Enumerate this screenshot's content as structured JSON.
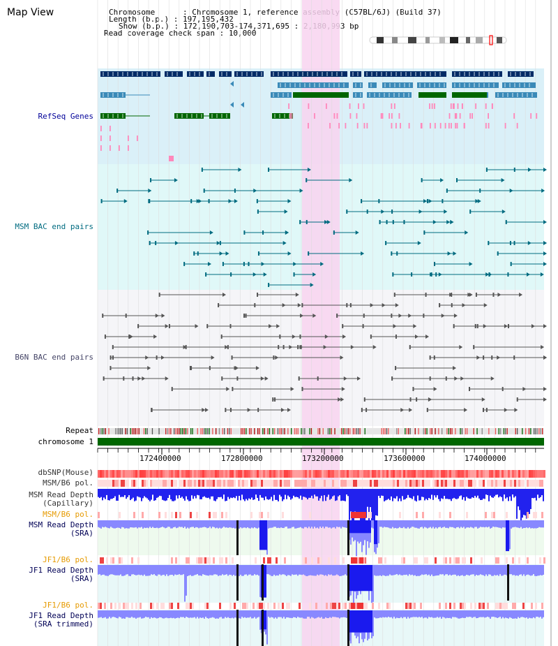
{
  "header": {
    "title": "Map View",
    "chromosome_line": "Chromosome      : Chromosome 1, reference assembly (C57BL/6J) (Build 37)",
    "length_line": "Length (b.p.) : 197,195,432",
    "show_line": "Show (b.p.) : 172,190,703-174,371,695 : 2,180,993 bp",
    "coverage_line": "Read coverage check span : 10,000"
  },
  "tracks": {
    "refseq": "RefSeq Genes",
    "msm_bac": "MSM BAC end pairs",
    "b6n_bac": "B6N BAC end pairs",
    "repeat": "Repeat",
    "chromosome": "chromosome 1",
    "dbsnp": "dbSNP(Mouse)",
    "msm_b6_pol_1": "MSM/B6 pol.",
    "msm_read_depth_cap_1": "MSM Read Depth",
    "msm_read_depth_cap_2": "(Capillary)",
    "msm_b6_pol_2": "MSM/B6 pol.",
    "msm_read_depth_sra_1": "MSM Read Depth",
    "msm_read_depth_sra_2": "(SRA)",
    "jf1_b6_pol_1": "JF1/B6 pol.",
    "jf1_read_depth_sra_1": "JF1 Read Depth",
    "jf1_read_depth_sra_2": "(SRA)",
    "jf1_b6_pol_2": "JF1/B6 pol.",
    "jf1_read_depth_trim_1": "JF1 Read Depth",
    "jf1_read_depth_trim_2": "(SRA trimmed)"
  },
  "axis": {
    "ticks": [
      "172400000",
      "172800000",
      "173200000",
      "173600000",
      "174000000"
    ]
  },
  "colors": {
    "highlight": "#f8d4f0",
    "refseq_bg": "#daf0f8",
    "msm_bg": "#e0f8f8",
    "b6n_bg": "#f4f4f8",
    "chromosome": "#006600",
    "gene_dark": "#002b66",
    "gene_mid": "#3a8ab8",
    "gene_green": "#006600",
    "pink": "#ff88bb",
    "bac_teal": "#006b80",
    "bac_gray": "#555555",
    "snp": "#ff6666",
    "depth_blue": "#2222ee",
    "depth_light": "#8888ff"
  }
}
